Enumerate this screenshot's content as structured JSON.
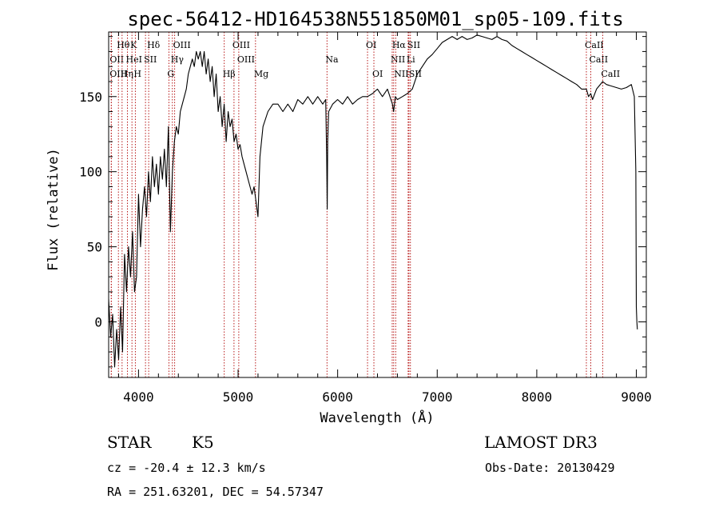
{
  "chart_data": {
    "type": "line",
    "title": "spec-56412-HD164538N551850M01_sp05-109.fits",
    "xlabel": "Wavelength (Å)",
    "ylabel": "Flux (relative)",
    "xlim": [
      3700,
      9100
    ],
    "ylim": [
      -37,
      193
    ],
    "x_ticks": [
      4000,
      5000,
      6000,
      7000,
      8000,
      9000
    ],
    "y_ticks": [
      0,
      50,
      100,
      150
    ],
    "grid": false,
    "legend": "none",
    "series": [
      {
        "color": "#000000",
        "x": [
          3700,
          3720,
          3740,
          3760,
          3780,
          3800,
          3820,
          3840,
          3860,
          3880,
          3900,
          3920,
          3940,
          3960,
          3980,
          4000,
          4020,
          4040,
          4060,
          4080,
          4100,
          4120,
          4140,
          4160,
          4180,
          4200,
          4220,
          4240,
          4260,
          4280,
          4300,
          4320,
          4340,
          4360,
          4380,
          4400,
          4420,
          4440,
          4460,
          4480,
          4500,
          4520,
          4540,
          4560,
          4580,
          4600,
          4620,
          4640,
          4660,
          4680,
          4700,
          4720,
          4740,
          4760,
          4780,
          4800,
          4820,
          4840,
          4860,
          4880,
          4900,
          4920,
          4940,
          4960,
          4980,
          5000,
          5020,
          5040,
          5060,
          5080,
          5100,
          5120,
          5140,
          5160,
          5180,
          5200,
          5220,
          5250,
          5300,
          5350,
          5400,
          5450,
          5500,
          5550,
          5600,
          5650,
          5700,
          5750,
          5800,
          5850,
          5880,
          5890,
          5895,
          5900,
          5910,
          5950,
          6000,
          6050,
          6100,
          6150,
          6200,
          6250,
          6300,
          6350,
          6400,
          6450,
          6500,
          6550,
          6562,
          6580,
          6600,
          6650,
          6700,
          6750,
          6800,
          6850,
          6900,
          6950,
          7000,
          7050,
          7100,
          7150,
          7200,
          7250,
          7300,
          7350,
          7400,
          7450,
          7500,
          7550,
          7600,
          7650,
          7700,
          7750,
          7800,
          7850,
          7900,
          7950,
          8000,
          8050,
          8100,
          8150,
          8200,
          8250,
          8300,
          8350,
          8400,
          8450,
          8498,
          8520,
          8542,
          8560,
          8600,
          8662,
          8700,
          8750,
          8800,
          8850,
          8900,
          8950,
          8980,
          8995,
          9000,
          9005,
          9010
        ],
        "y": [
          15,
          -10,
          5,
          -30,
          -5,
          -25,
          10,
          -20,
          45,
          20,
          50,
          30,
          60,
          20,
          30,
          85,
          50,
          75,
          90,
          70,
          100,
          80,
          110,
          90,
          105,
          85,
          110,
          95,
          115,
          90,
          130,
          60,
          100,
          120,
          130,
          125,
          140,
          145,
          150,
          155,
          165,
          170,
          175,
          170,
          180,
          175,
          180,
          170,
          180,
          165,
          175,
          160,
          170,
          150,
          165,
          140,
          150,
          130,
          145,
          120,
          140,
          130,
          135,
          120,
          125,
          115,
          118,
          110,
          105,
          100,
          95,
          90,
          85,
          90,
          80,
          70,
          110,
          130,
          140,
          145,
          145,
          140,
          145,
          140,
          148,
          145,
          150,
          145,
          150,
          145,
          148,
          110,
          75,
          120,
          140,
          145,
          148,
          145,
          150,
          145,
          148,
          150,
          150,
          152,
          155,
          150,
          155,
          145,
          140,
          150,
          148,
          150,
          152,
          155,
          165,
          170,
          175,
          178,
          182,
          186,
          188,
          190,
          188,
          190,
          188,
          189,
          191,
          190,
          189,
          188,
          190,
          188,
          187,
          184,
          182,
          180,
          178,
          176,
          174,
          172,
          170,
          168,
          166,
          164,
          162,
          160,
          158,
          155,
          155,
          150,
          152,
          148,
          155,
          160,
          158,
          157,
          156,
          155,
          156,
          158,
          150,
          100,
          10,
          0,
          -5
        ]
      }
    ],
    "line_markers": [
      {
        "label": "Hθ",
        "x": 3798,
        "row": 0
      },
      {
        "label": "K",
        "x": 3934,
        "row": 0
      },
      {
        "label": "Hδ",
        "x": 4102,
        "row": 0
      },
      {
        "label": "OIII",
        "x": 4363,
        "row": 0
      },
      {
        "label": "OIII",
        "x": 4959,
        "row": 0
      },
      {
        "label": "OI",
        "x": 6300,
        "row": 0
      },
      {
        "label": "Hα",
        "x": 6563,
        "row": 0
      },
      {
        "label": "SII",
        "x": 6716,
        "row": 0
      },
      {
        "label": "CaII",
        "x": 8498,
        "row": 0
      },
      {
        "label": "OII",
        "x": 3727,
        "row": 1
      },
      {
        "label": "HeI",
        "x": 3889,
        "row": 1
      },
      {
        "label": "SII",
        "x": 4070,
        "row": 1
      },
      {
        "label": "Hγ",
        "x": 4340,
        "row": 1
      },
      {
        "label": "OIII",
        "x": 5007,
        "row": 1
      },
      {
        "label": "Na",
        "x": 5893,
        "row": 1
      },
      {
        "label": "NII",
        "x": 6548,
        "row": 1
      },
      {
        "label": "Li",
        "x": 6708,
        "row": 1
      },
      {
        "label": "CaII",
        "x": 8542,
        "row": 1
      },
      {
        "label": "OIII",
        "x": 3726,
        "row": 2
      },
      {
        "label": "Hη",
        "x": 3835,
        "row": 2
      },
      {
        "label": "H",
        "x": 3968,
        "row": 2
      },
      {
        "label": "G",
        "x": 4305,
        "row": 2
      },
      {
        "label": "Hβ",
        "x": 4861,
        "row": 2
      },
      {
        "label": "Mg",
        "x": 5175,
        "row": 2
      },
      {
        "label": "OI",
        "x": 6364,
        "row": 2
      },
      {
        "label": "NII",
        "x": 6583,
        "row": 2
      },
      {
        "label": "SII",
        "x": 6731,
        "row": 2
      },
      {
        "label": "CaII",
        "x": 8662,
        "row": 2
      }
    ]
  },
  "info": {
    "object_class": "STAR",
    "subclass": "K5",
    "survey": "LAMOST DR3",
    "cz": "cz = -20.4 ± 12.3 km/s",
    "obs_date": "Obs-Date: 20130429",
    "coords": "RA = 251.63201, DEC =  54.57347"
  }
}
